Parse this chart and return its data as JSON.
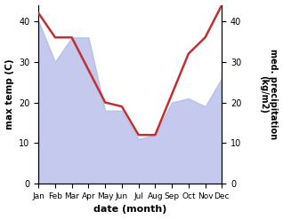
{
  "months": [
    "Jan",
    "Feb",
    "Mar",
    "Apr",
    "May",
    "Jun",
    "Jul",
    "Aug",
    "Sep",
    "Oct",
    "Nov",
    "Dec"
  ],
  "max_temp": [
    40,
    30,
    36,
    36,
    18,
    18,
    11,
    12,
    20,
    21,
    19,
    26
  ],
  "precipitation": [
    42,
    36,
    36,
    28,
    20,
    19,
    12,
    12,
    22,
    32,
    36,
    44
  ],
  "temp_ylim": [
    0,
    44
  ],
  "precip_ylim": [
    0,
    44
  ],
  "temp_yticks": [
    0,
    10,
    20,
    30,
    40
  ],
  "precip_yticks": [
    0,
    10,
    20,
    30,
    40
  ],
  "fill_color": "#b0b8e8",
  "line_color": "#c03030",
  "line_width": 1.8,
  "xlabel": "date (month)",
  "ylabel_left": "max temp (C)",
  "ylabel_right": "med. precipitation\n(kg/m2)",
  "bg_color": "#ffffff"
}
